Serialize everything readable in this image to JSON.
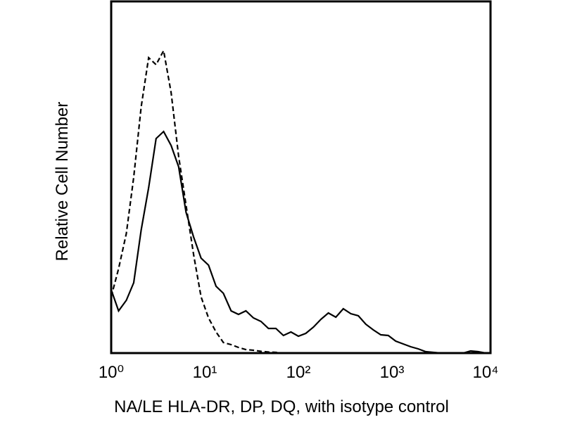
{
  "chart_data": {
    "type": "line",
    "xlabel": "NA/LE HLA-DR, DP, DQ, with isotype control",
    "ylabel": "Relative Cell Number",
    "xscale": "log",
    "grid": false,
    "xlim": [
      1,
      10000
    ],
    "ylim": [
      0,
      100
    ],
    "xticks": [
      {
        "value": 1,
        "label": "10⁰"
      },
      {
        "value": 10,
        "label": "10¹"
      },
      {
        "value": 100,
        "label": "10²"
      },
      {
        "value": 1000,
        "label": "10³"
      },
      {
        "value": 10000,
        "label": "10⁴"
      }
    ],
    "x": [
      1,
      1.2,
      1.45,
      1.74,
      2.09,
      2.51,
      3.02,
      3.63,
      4.37,
      5.25,
      6.31,
      7.59,
      9.12,
      10.96,
      13.2,
      15.8,
      19.1,
      22.9,
      27.5,
      33.1,
      39.8,
      47.9,
      57.5,
      69.2,
      83.2,
      100,
      120,
      145,
      174,
      209,
      251,
      302,
      363,
      437,
      525,
      631,
      759,
      912,
      1096,
      1318,
      1585,
      1905,
      2291,
      2754,
      3311,
      3981,
      4786,
      5754,
      6918,
      8318,
      10000
    ],
    "series": [
      {
        "color": "#000000",
        "dash": false,
        "values": [
          18,
          12,
          15,
          20,
          35,
          47,
          61,
          63,
          59,
          53,
          40,
          33,
          27,
          25,
          19,
          17,
          12,
          11,
          12,
          10,
          9,
          7,
          7,
          5,
          6,
          4.8,
          5.6,
          7.4,
          9.6,
          11.4,
          10.2,
          12.6,
          11.2,
          10.6,
          8.2,
          6.6,
          5.2,
          5,
          3.4,
          2.6,
          1.8,
          1.2,
          0.4,
          0.2,
          0,
          0,
          0,
          0,
          0.6,
          0.4,
          0
        ]
      },
      {
        "color": "#000000",
        "dash": true,
        "values": [
          16,
          24,
          34,
          50,
          70,
          84,
          82,
          86,
          74,
          56,
          42,
          28,
          16,
          10,
          6,
          3,
          2.4,
          1.6,
          1,
          0.8,
          0.5,
          0.3,
          0.2,
          0,
          0,
          null,
          null,
          null,
          null,
          null,
          null,
          null,
          null,
          null,
          null,
          null,
          null,
          null,
          null,
          null,
          null,
          null,
          null,
          null,
          null,
          null,
          null,
          null,
          null,
          null,
          null
        ]
      }
    ]
  }
}
